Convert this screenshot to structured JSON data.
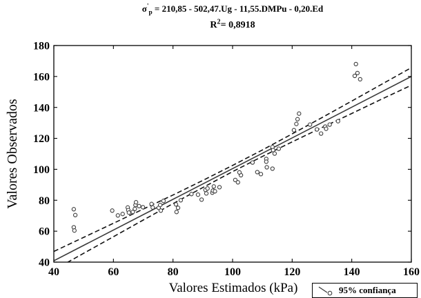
{
  "chart_data": {
    "type": "scatter",
    "title": {
      "sigma": "σ",
      "prime": "'",
      "sub": "p",
      "equation": "= 210,85 - 502,47.Ug - 11,55.DMPu - 0,20.Ed"
    },
    "subtitle": {
      "r": "R",
      "sup": "2",
      "value": "= 0,8918"
    },
    "xlabel": "Valores Estimados (kPa)",
    "ylabel": "Valores Observados",
    "xlim": [
      40,
      160
    ],
    "ylim": [
      40,
      180
    ],
    "xticks": [
      40,
      60,
      80,
      100,
      120,
      140,
      160
    ],
    "yticks": [
      40,
      60,
      80,
      100,
      120,
      140,
      160,
      180
    ],
    "grid": false,
    "legend": {
      "label": "95% confiança",
      "position": "bottom-right"
    },
    "points": [
      [
        46.7,
        74.2
      ],
      [
        47.2,
        70.4
      ],
      [
        46.7,
        62.5
      ],
      [
        46.9,
        60.4
      ],
      [
        59.6,
        73.3
      ],
      [
        61.5,
        70.2
      ],
      [
        63.1,
        71.1
      ],
      [
        64.8,
        75.3
      ],
      [
        65.0,
        73.6
      ],
      [
        65.2,
        72.0
      ],
      [
        66.5,
        72.4
      ],
      [
        67.2,
        74.4
      ],
      [
        67.4,
        76.9
      ],
      [
        67.6,
        78.7
      ],
      [
        68.6,
        76.2
      ],
      [
        69.9,
        75.5
      ],
      [
        72.8,
        77.6
      ],
      [
        73.2,
        75.3
      ],
      [
        75.2,
        75.1
      ],
      [
        75.7,
        76.9
      ],
      [
        75.9,
        73.3
      ],
      [
        76.8,
        79.6
      ],
      [
        81.0,
        77.3
      ],
      [
        81.2,
        72.4
      ],
      [
        81.7,
        75.1
      ],
      [
        82.6,
        80.0
      ],
      [
        86.2,
        84.0
      ],
      [
        88.4,
        83.6
      ],
      [
        89.6,
        80.4
      ],
      [
        90.9,
        86.7
      ],
      [
        91.2,
        84.4
      ],
      [
        91.6,
        87.6
      ],
      [
        93.2,
        84.9
      ],
      [
        93.4,
        86.2
      ],
      [
        93.7,
        88.9
      ],
      [
        94.1,
        85.8
      ],
      [
        95.6,
        88.4
      ],
      [
        100.9,
        93.1
      ],
      [
        101.8,
        91.6
      ],
      [
        102.8,
        96.2
      ],
      [
        102.3,
        98.0
      ],
      [
        106.7,
        104.4
      ],
      [
        108.3,
        98.2
      ],
      [
        109.5,
        96.9
      ],
      [
        111.3,
        106.7
      ],
      [
        111.3,
        104.9
      ],
      [
        111.5,
        101.3
      ],
      [
        113.4,
        100.4
      ],
      [
        113.4,
        114.4
      ],
      [
        113.6,
        112.4
      ],
      [
        114.1,
        110.2
      ],
      [
        115.5,
        113.3
      ],
      [
        120.6,
        125.3
      ],
      [
        121.4,
        129.3
      ],
      [
        121.8,
        132.4
      ],
      [
        122.3,
        136.0
      ],
      [
        126.0,
        128.9
      ],
      [
        128.3,
        125.8
      ],
      [
        129.7,
        123.1
      ],
      [
        131.1,
        127.6
      ],
      [
        131.4,
        126.2
      ],
      [
        132.6,
        128.9
      ],
      [
        135.4,
        131.1
      ],
      [
        141.4,
        168.0
      ],
      [
        141.9,
        162.2
      ],
      [
        141.0,
        160.4
      ],
      [
        142.8,
        158.2
      ]
    ],
    "fit_line": [
      [
        40,
        40.9
      ],
      [
        160,
        160.0
      ]
    ],
    "ci_upper": [
      [
        40,
        46.9
      ],
      [
        50,
        56.0
      ],
      [
        60,
        65.1
      ],
      [
        70,
        74.3
      ],
      [
        80,
        83.4
      ],
      [
        90,
        92.8
      ],
      [
        100,
        102.5
      ],
      [
        110,
        112.5
      ],
      [
        120,
        122.9
      ],
      [
        130,
        133.4
      ],
      [
        140,
        144.1
      ],
      [
        150,
        154.9
      ],
      [
        160,
        165.7
      ]
    ],
    "ci_lower": [
      [
        40,
        34.9
      ],
      [
        50,
        45.7
      ],
      [
        60,
        56.4
      ],
      [
        70,
        67.2
      ],
      [
        80,
        77.8
      ],
      [
        90,
        88.2
      ],
      [
        100,
        98.5
      ],
      [
        110,
        108.3
      ],
      [
        120,
        117.7
      ],
      [
        130,
        127.0
      ],
      [
        140,
        136.1
      ],
      [
        150,
        145.3
      ],
      [
        160,
        154.3
      ]
    ]
  },
  "colors": {
    "markers": "#3a3a3a",
    "fit_line": "#3a3a3a",
    "confidence_lines": "#111111",
    "frame": "#000000",
    "background": "#ffffff"
  }
}
